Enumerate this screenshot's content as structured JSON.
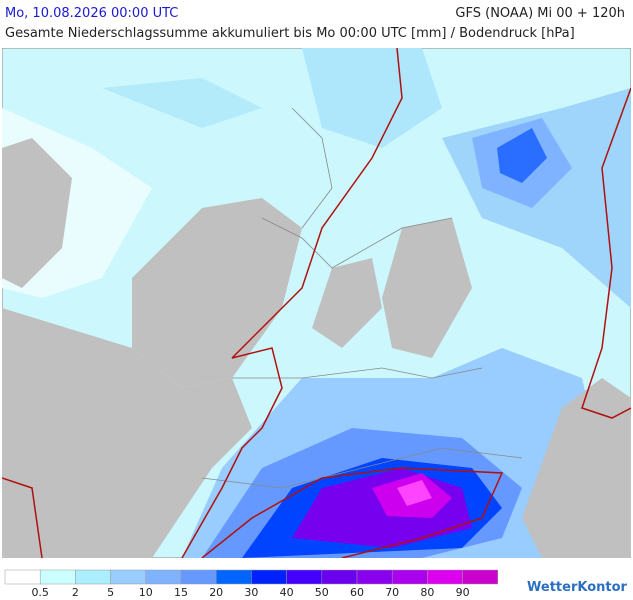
{
  "header": {
    "title": "Mo, 10.08.2026 00:00 UTC",
    "run": "GFS (NOAA) Mi 00 + 120h",
    "subtitle": "Gesamte Niederschlagssumme akkumuliert bis Mo 00:00 UTC [mm] / Bodendruck [hPa]"
  },
  "legend": {
    "colors": [
      "#ffffff",
      "#ccffff",
      "#aaeeff",
      "#99ccff",
      "#80b3ff",
      "#6699ff",
      "#0066ff",
      "#0022ff",
      "#4400ff",
      "#6a00ee",
      "#8800ee",
      "#aa00ee",
      "#dd00ee",
      "#cc00cc"
    ],
    "labels": [
      "0.5",
      "2",
      "5",
      "10",
      "15",
      "20",
      "30",
      "40",
      "50",
      "60",
      "70",
      "80",
      "90"
    ]
  },
  "brand": "WetterKontor"
}
